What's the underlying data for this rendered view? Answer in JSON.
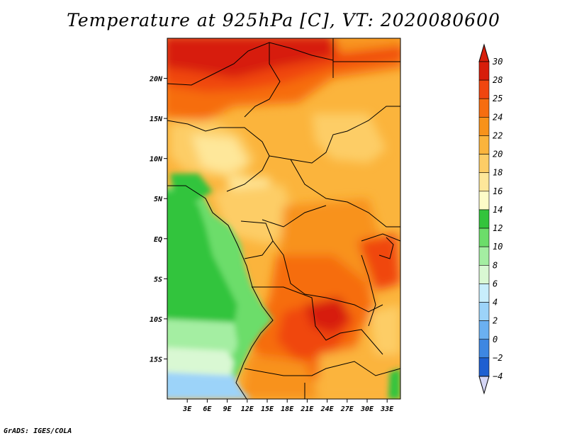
{
  "title": "Temperature at 925hPa [C], VT: 2020080600",
  "credit": "GrADS: IGES/COLA",
  "chart_data": {
    "type": "heatmap",
    "title": "Temperature at 925hPa [C], VT: 2020080600",
    "variable": "Temperature at 925hPa",
    "units": "C",
    "valid_time": "2020080600",
    "x_range": [
      0,
      35
    ],
    "y_range": [
      -20,
      25
    ],
    "x_ticks": [
      3,
      6,
      9,
      12,
      15,
      18,
      21,
      24,
      27,
      30,
      33
    ],
    "x_tick_labels": [
      "3E",
      "6E",
      "9E",
      "12E",
      "15E",
      "18E",
      "21E",
      "24E",
      "27E",
      "30E",
      "33E"
    ],
    "y_ticks": [
      20,
      15,
      10,
      5,
      0,
      -5,
      -10,
      -15
    ],
    "y_tick_labels": [
      "20N",
      "15N",
      "10N",
      "5N",
      "EQ",
      "5S",
      "10S",
      "15S"
    ],
    "colorbar": {
      "levels": [
        "30",
        "28",
        "25",
        "24",
        "22",
        "20",
        "18",
        "16",
        "14",
        "12",
        "10",
        "8",
        "6",
        "4",
        "2",
        "0",
        "−2",
        "−4"
      ],
      "colors": [
        "#d71e0a",
        "#f0460f",
        "#f66d10",
        "#f8921a",
        "#fbb43c",
        "#fdcd66",
        "#fee79a",
        "#fdfcc8",
        "#33c43c",
        "#6cdd6a",
        "#a4eea2",
        "#d9f8d3",
        "#c8eefc",
        "#9cd3f9",
        "#6bb0f1",
        "#3e87e2",
        "#1e5fd1",
        "#0b3fb6",
        "#062690",
        "#0a1066"
      ],
      "top_triangle_color": "#d71e0a",
      "bottom_triangle_color": "#d5d6f5"
    }
  }
}
